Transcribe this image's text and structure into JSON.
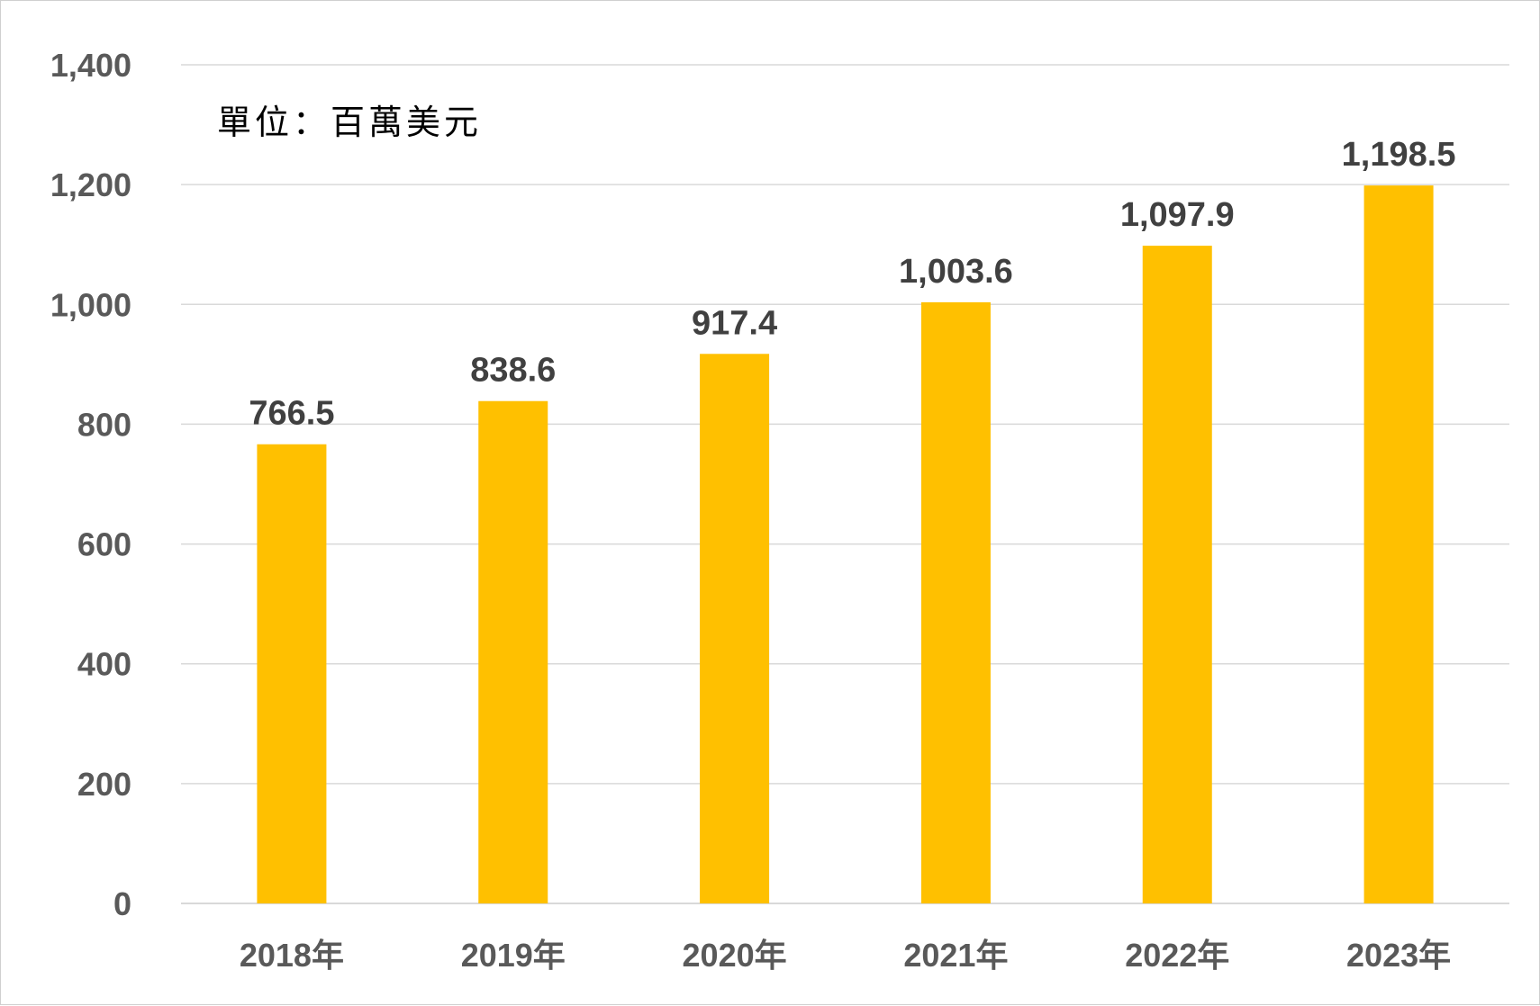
{
  "chart_data": {
    "type": "bar",
    "unit_note": "單位：百萬美元",
    "categories": [
      "2018年",
      "2019年",
      "2020年",
      "2021年",
      "2022年",
      "2023年"
    ],
    "values": [
      766.5,
      838.6,
      917.4,
      1003.6,
      1097.9,
      1198.5
    ],
    "data_labels": [
      "766.5",
      "838.6",
      "917.4",
      "1,003.6",
      "1,097.9",
      "1,198.5"
    ],
    "ylim": [
      0,
      1400
    ],
    "yticks": [
      0,
      200,
      400,
      600,
      800,
      1000,
      1200,
      1400
    ],
    "ytick_labels": [
      "0",
      "200",
      "400",
      "600",
      "800",
      "1,000",
      "1,200",
      "1,400"
    ],
    "grid": true,
    "legend": "none",
    "bar_color": "#FFC000"
  }
}
